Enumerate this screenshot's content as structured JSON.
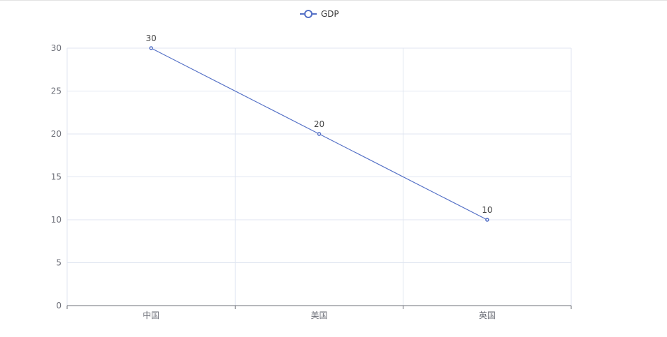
{
  "chart_data": {
    "type": "line",
    "categories": [
      "中国",
      "美国",
      "英国"
    ],
    "series": [
      {
        "name": "GDP",
        "values": [
          30,
          20,
          10
        ],
        "color": "#5470c6"
      }
    ],
    "ylim": [
      0,
      30
    ],
    "yticks": [
      0,
      5,
      10,
      15,
      20,
      25,
      30
    ],
    "grid": true,
    "legend": "top-center",
    "data_labels": true
  }
}
